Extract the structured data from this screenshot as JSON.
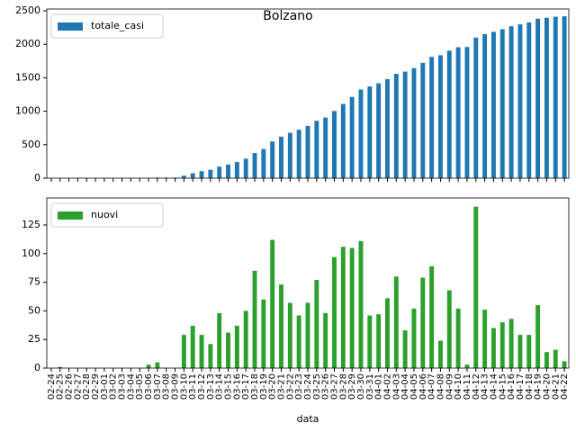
{
  "chart_data": [
    {
      "type": "bar",
      "title": "Bolzano",
      "legend": "upper left",
      "series": [
        {
          "name": "totale_casi",
          "color": "#1f77b4",
          "values": [
            0,
            1,
            1,
            1,
            1,
            1,
            1,
            1,
            1,
            1,
            1,
            4,
            9,
            9,
            9,
            38,
            75,
            104,
            125,
            173,
            204,
            241,
            291,
            376,
            436,
            548,
            621,
            678,
            724,
            781,
            858,
            906,
            1003,
            1109,
            1214,
            1325,
            1371,
            1418,
            1479,
            1559,
            1592,
            1644,
            1723,
            1812,
            1836,
            1904,
            1956,
            1959,
            2100,
            2151,
            2186,
            2226,
            2269,
            2298,
            2327,
            2382,
            2396,
            2412,
            2418
          ]
        }
      ],
      "ylim": [
        0,
        2527
      ],
      "yticks": [
        0,
        500,
        1000,
        1500,
        2000,
        2500
      ]
    },
    {
      "type": "bar",
      "xlabel": "data",
      "legend": "upper left",
      "categories": [
        "02-24",
        "02-25",
        "02-26",
        "02-27",
        "02-28",
        "02-29",
        "03-01",
        "03-02",
        "03-03",
        "03-04",
        "03-05",
        "03-06",
        "03-07",
        "03-08",
        "03-09",
        "03-10",
        "03-11",
        "03-12",
        "03-13",
        "03-14",
        "03-15",
        "03-16",
        "03-17",
        "03-18",
        "03-19",
        "03-20",
        "03-21",
        "03-22",
        "03-23",
        "03-24",
        "03-25",
        "03-26",
        "03-27",
        "03-28",
        "03-29",
        "03-30",
        "03-31",
        "04-01",
        "04-02",
        "04-03",
        "04-04",
        "04-05",
        "04-06",
        "04-07",
        "04-08",
        "04-09",
        "04-10",
        "04-11",
        "04-12",
        "04-13",
        "04-14",
        "04-15",
        "04-16",
        "04-17",
        "04-18",
        "04-19",
        "04-20",
        "04-21",
        "04-22"
      ],
      "series": [
        {
          "name": "nuovi",
          "color": "#2ca02c",
          "values": [
            0,
            1,
            0,
            0,
            0,
            0,
            0,
            0,
            0,
            0,
            0,
            3,
            5,
            0,
            0,
            29,
            37,
            29,
            21,
            48,
            31,
            37,
            50,
            85,
            60,
            112,
            73,
            57,
            46,
            57,
            77,
            48,
            97,
            106,
            105,
            111,
            46,
            47,
            61,
            80,
            33,
            52,
            79,
            89,
            24,
            68,
            52,
            3,
            141,
            51,
            35,
            40,
            43,
            29,
            29,
            55,
            14,
            16,
            6
          ]
        }
      ],
      "ylim": [
        0,
        148.6
      ],
      "yticks": [
        0,
        25,
        50,
        75,
        100,
        125
      ]
    }
  ]
}
